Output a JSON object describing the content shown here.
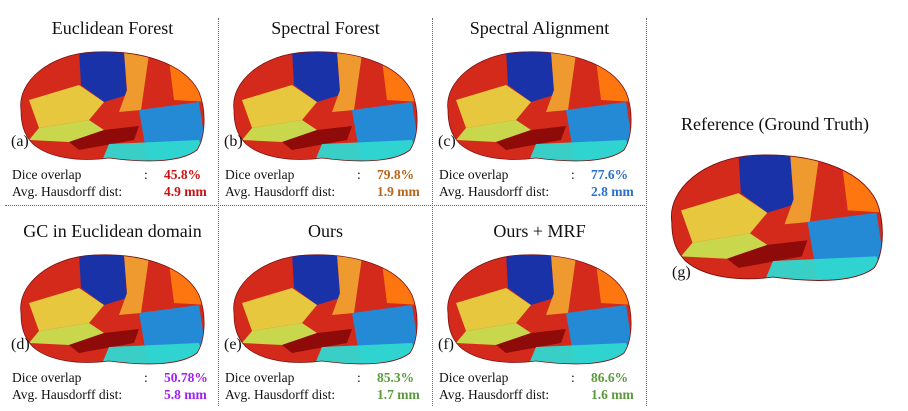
{
  "colors": {
    "red": "#cc1111",
    "orange": "#b8651b",
    "blue": "#2a6fd0",
    "purple": "#a020f0",
    "green": "#5a9a3a"
  },
  "panels": [
    {
      "title": "Euclidean Forest",
      "letter": "(a)",
      "dice_label": "Dice overlap",
      "haus_label": "Avg. Hausdorff dist:",
      "dice": "45.8%",
      "haus": "4.9 mm",
      "color": "#cc1111"
    },
    {
      "title": "Spectral Forest",
      "letter": "(b)",
      "dice_label": "Dice overlap",
      "haus_label": "Avg. Hausdorff dist:",
      "dice": "79.8%",
      "haus": "1.9 mm",
      "color": "#b8651b"
    },
    {
      "title": "Spectral Alignment",
      "letter": "(c)",
      "dice_label": "Dice overlap",
      "haus_label": "Avg. Hausdorff dist:",
      "dice": "77.6%",
      "haus": "2.8 mm",
      "color": "#2a6fd0"
    },
    {
      "title": "GC in Euclidean domain",
      "letter": "(d)",
      "dice_label": "Dice overlap",
      "haus_label": "Avg. Hausdorff dist:",
      "dice": "50.78%",
      "haus": "5.8 mm",
      "color": "#a020f0"
    },
    {
      "title": "Ours",
      "letter": "(e)",
      "dice_label": "Dice overlap",
      "haus_label": "Avg. Hausdorff dist:",
      "dice": "85.3%",
      "haus": "1.7 mm",
      "color": "#5a9a3a"
    },
    {
      "title": "Ours + MRF",
      "letter": "(f)",
      "dice_label": "Dice overlap",
      "haus_label": "Avg. Hausdorff dist:",
      "dice": "86.6%",
      "haus": "1.6 mm",
      "color": "#5a9a3a"
    }
  ],
  "reference": {
    "title": "Reference (Ground Truth)",
    "letter": "(g)"
  },
  "colon": ":"
}
